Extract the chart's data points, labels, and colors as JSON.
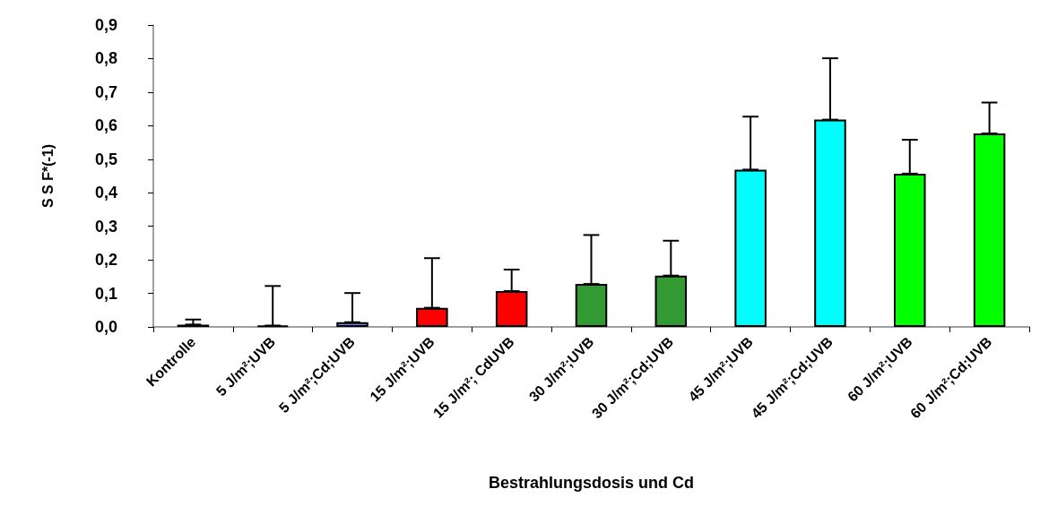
{
  "chart_data": {
    "type": "bar",
    "xlabel": "Bestrahlungsdosis und Cd",
    "ylabel": "S S F*(-1)",
    "categories": [
      "Kontrolle",
      "5 J/m²;UVB",
      "5 J/m²;Cd;UVB",
      "15 J/m²;UVB",
      "15 J/m²; CdUVB",
      "30 J/m²;UVB",
      "30 J/m²;Cd;UVB",
      "45 J/m²;UVB",
      "45 J/m²;Cd;UVB",
      "60 J/m²;UVB",
      "60 J/m²;Cd;UVB"
    ],
    "values": [
      0.007,
      0.004,
      0.014,
      0.057,
      0.107,
      0.128,
      0.153,
      0.469,
      0.618,
      0.457,
      0.577
    ],
    "colors": [
      "#8080ff",
      "#000000",
      "#8080ff",
      "#ff0000",
      "#ff0000",
      "#339933",
      "#339933",
      "#00ffff",
      "#00ffff",
      "#00ff00",
      "#00ff00"
    ],
    "errors": [
      [
        0.007,
        0.022
      ],
      [
        0.004,
        0.122
      ],
      [
        0.014,
        0.101
      ],
      [
        0.057,
        0.205
      ],
      [
        0.107,
        0.171
      ],
      [
        0.128,
        0.274
      ],
      [
        0.153,
        0.257
      ],
      [
        0.469,
        0.627
      ],
      [
        0.618,
        0.801
      ],
      [
        0.457,
        0.558
      ],
      [
        0.577,
        0.669
      ]
    ],
    "ylim": [
      0,
      0.9
    ],
    "yticks": [
      {
        "value": 0,
        "label": "0,0"
      },
      {
        "value": 0.1,
        "label": "0,1"
      },
      {
        "value": 0.2,
        "label": "0,2"
      },
      {
        "value": 0.3,
        "label": "0,3"
      },
      {
        "value": 0.4,
        "label": "0,4"
      },
      {
        "value": 0.5,
        "label": "0,5"
      },
      {
        "value": 0.6,
        "label": "0,6"
      },
      {
        "value": 0.7,
        "label": "0,7"
      },
      {
        "value": 0.8,
        "label": "0,8"
      },
      {
        "value": 0.9,
        "label": "0,9"
      }
    ],
    "grid": false
  }
}
